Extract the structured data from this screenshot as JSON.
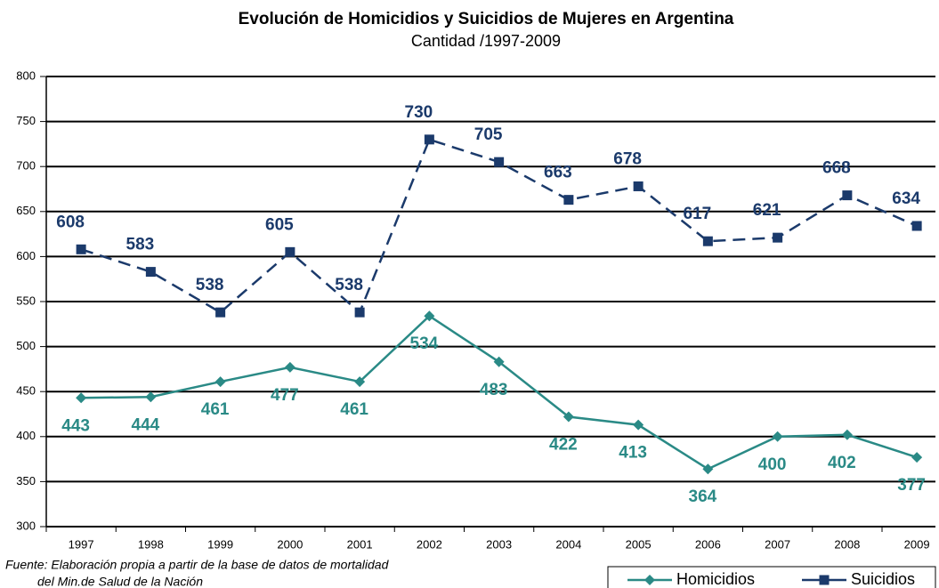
{
  "chart_data": {
    "type": "line",
    "title": "Evolución de Homicidios y Suicidios de Mujeres en Argentina",
    "subtitle": "Cantidad /1997-2009",
    "source": [
      "Fuente: Elaboración propia a partir de la base de datos de mortalidad",
      "del Min.de Salud de la Nación"
    ],
    "categories": [
      "1997",
      "1998",
      "1999",
      "2000",
      "2001",
      "2002",
      "2003",
      "2004",
      "2005",
      "2006",
      "2007",
      "2008",
      "2009"
    ],
    "series": [
      {
        "name": "Homicidios",
        "color": "#2a8a86",
        "marker": "diamond",
        "dashed": false,
        "values": [
          443,
          444,
          461,
          477,
          461,
          534,
          483,
          422,
          413,
          364,
          400,
          402,
          377
        ]
      },
      {
        "name": "Suicidios",
        "color": "#1b3a6b",
        "marker": "square",
        "dashed": true,
        "values": [
          608,
          583,
          538,
          605,
          538,
          730,
          705,
          663,
          678,
          617,
          621,
          668,
          634
        ]
      }
    ],
    "ylim": [
      300,
      800
    ],
    "yticks": [
      300,
      350,
      400,
      450,
      500,
      550,
      600,
      650,
      700,
      750,
      800
    ],
    "grid": true,
    "legend": "bottom-right"
  }
}
